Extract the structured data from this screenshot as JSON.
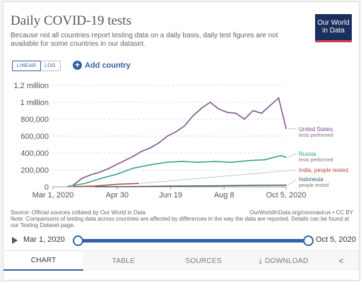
{
  "header": {
    "title": "Daily COVID-19 tests",
    "subtitle": "Because not all countries report testing data on a daily basis, daily test figures are not available for some countries in our dataset.",
    "logo": "Our World in Data"
  },
  "controls": {
    "scale_options": [
      "LINEAR",
      "LOG"
    ],
    "active_scale": "LINEAR",
    "add_country_label": "Add country",
    "add_icon": "plus-circle-icon"
  },
  "chart_data": {
    "type": "line",
    "title": "Daily COVID-19 tests",
    "x_ticks": [
      "Mar 1, 2020",
      "Apr 30",
      "Jun 19",
      "Aug 8",
      "Oct 5, 2020"
    ],
    "x_range": [
      "2020-03-01",
      "2020-10-05"
    ],
    "y_ticks": [
      "0",
      "200,000",
      "400,000",
      "600,000",
      "800,000",
      "1 million",
      "1.2 million"
    ],
    "ylim": [
      0,
      1200000
    ],
    "grid": true,
    "legend_placement": "right",
    "series": [
      {
        "name": "United States",
        "sub": "tests performed",
        "color": "#7a4a8c",
        "x": [
          "2020-03-20",
          "2020-03-28",
          "2020-04-05",
          "2020-04-13",
          "2020-04-21",
          "2020-04-29",
          "2020-05-07",
          "2020-05-15",
          "2020-05-23",
          "2020-05-31",
          "2020-06-08",
          "2020-06-16",
          "2020-06-24",
          "2020-07-02",
          "2020-07-10",
          "2020-07-18",
          "2020-07-26",
          "2020-08-03",
          "2020-08-11",
          "2020-08-19",
          "2020-08-27",
          "2020-09-04",
          "2020-09-12",
          "2020-09-20",
          "2020-09-28",
          "2020-10-05"
        ],
        "y": [
          20000,
          100000,
          140000,
          170000,
          210000,
          260000,
          310000,
          360000,
          420000,
          460000,
          520000,
          600000,
          650000,
          720000,
          840000,
          930000,
          1000000,
          920000,
          880000,
          870000,
          800000,
          900000,
          870000,
          960000,
          1050000,
          690000
        ]
      },
      {
        "name": "Russia",
        "sub": "tests performed",
        "color": "#2a9d8f",
        "x": [
          "2020-03-15",
          "2020-03-31",
          "2020-04-15",
          "2020-04-30",
          "2020-05-15",
          "2020-05-31",
          "2020-06-15",
          "2020-06-30",
          "2020-07-15",
          "2020-07-31",
          "2020-08-15",
          "2020-08-31",
          "2020-09-15",
          "2020-09-30",
          "2020-10-05"
        ],
        "y": [
          5000,
          40000,
          100000,
          150000,
          220000,
          260000,
          290000,
          300000,
          290000,
          300000,
          290000,
          310000,
          320000,
          370000,
          350000
        ]
      },
      {
        "name": "India, people tested",
        "sub": "",
        "color": "#b04a33",
        "x": [
          "2020-03-20",
          "2020-04-10",
          "2020-04-30",
          "2020-05-20"
        ],
        "y": [
          2000,
          10000,
          30000,
          40000
        ]
      },
      {
        "name": "Indonesia",
        "sub": "people tested",
        "color": "#3f5a6b",
        "x": [
          "2020-04-10",
          "2020-05-15",
          "2020-06-19",
          "2020-08-01",
          "2020-09-10",
          "2020-10-05"
        ],
        "y": [
          1000,
          3000,
          8000,
          12000,
          18000,
          20000
        ]
      }
    ]
  },
  "footer": {
    "source": "Source: Official sources collated by Our World in Data",
    "source_url": "OurWorldInData.org/coronavirus • CC BY",
    "note": "Note: Comparisons of testing data across countries are affected by differences in the way the data are reported. Details can be found at our Testing Dataset page."
  },
  "timeline": {
    "start": "Mar 1, 2020",
    "end": "Oct 5, 2020",
    "play_icon": "play-icon"
  },
  "tabs": [
    {
      "label": "CHART",
      "active": true
    },
    {
      "label": "TABLE",
      "active": false
    },
    {
      "label": "SOURCES",
      "active": false
    },
    {
      "label": "DOWNLOAD",
      "active": false
    }
  ],
  "share_icon": "share-icon"
}
